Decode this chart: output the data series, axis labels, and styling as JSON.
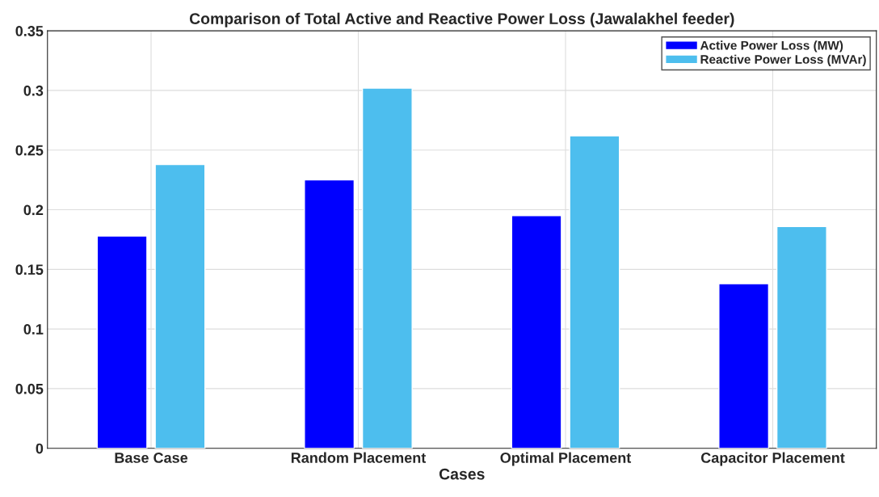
{
  "chart_data": {
    "type": "bar",
    "title": "Comparison of Total Active and Reactive Power Loss (Jawalakhel feeder)",
    "xlabel": "Cases",
    "categories": [
      "Base Case",
      "Random Placement",
      "Optimal Placement",
      "Capacitor Placement"
    ],
    "series": [
      {
        "name": "Active Power Loss (MW)",
        "color": "#0000ff",
        "values": [
          0.178,
          0.225,
          0.195,
          0.138
        ]
      },
      {
        "name": "Reactive Power Loss (MVAr)",
        "color": "#4dbeee",
        "values": [
          0.238,
          0.302,
          0.262,
          0.186
        ]
      }
    ],
    "ylim": [
      0,
      0.35
    ],
    "yticks": [
      0,
      0.05,
      0.1,
      0.15,
      0.2,
      0.25,
      0.3,
      0.35
    ],
    "grid": true,
    "legend": "top right"
  }
}
